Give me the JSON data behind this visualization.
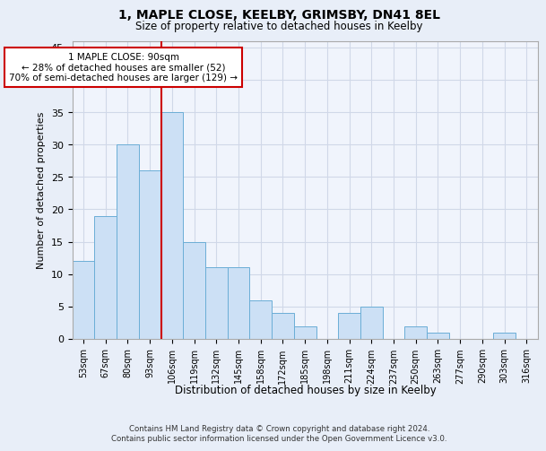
{
  "title": "1, MAPLE CLOSE, KEELBY, GRIMSBY, DN41 8EL",
  "subtitle": "Size of property relative to detached houses in Keelby",
  "xlabel": "Distribution of detached houses by size in Keelby",
  "ylabel": "Number of detached properties",
  "categories": [
    "53sqm",
    "67sqm",
    "80sqm",
    "93sqm",
    "106sqm",
    "119sqm",
    "132sqm",
    "145sqm",
    "158sqm",
    "172sqm",
    "185sqm",
    "198sqm",
    "211sqm",
    "224sqm",
    "237sqm",
    "250sqm",
    "263sqm",
    "277sqm",
    "290sqm",
    "303sqm",
    "316sqm"
  ],
  "values": [
    12,
    19,
    30,
    26,
    35,
    15,
    11,
    11,
    6,
    4,
    2,
    0,
    4,
    5,
    0,
    2,
    1,
    0,
    0,
    1,
    0
  ],
  "bar_color": "#cce0f5",
  "bar_edge_color": "#6baed6",
  "marker_line_color": "#cc0000",
  "annotation_text": "1 MAPLE CLOSE: 90sqm\n← 28% of detached houses are smaller (52)\n70% of semi-detached houses are larger (129) →",
  "annotation_box_color": "#ffffff",
  "annotation_box_edge": "#cc0000",
  "ylim": [
    0,
    46
  ],
  "yticks": [
    0,
    5,
    10,
    15,
    20,
    25,
    30,
    35,
    40,
    45
  ],
  "footer_text": "Contains HM Land Registry data © Crown copyright and database right 2024.\nContains public sector information licensed under the Open Government Licence v3.0.",
  "grid_color": "#d0d8e8",
  "bg_color": "#e8eef8",
  "plot_bg_color": "#f0f4fc"
}
